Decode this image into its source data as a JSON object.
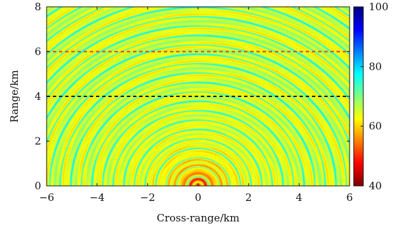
{
  "chart_data": {
    "type": "heatmap",
    "title": "",
    "xlabel": "Cross-range/km",
    "ylabel": "Range/km",
    "xlim": [
      -6,
      6
    ],
    "ylim": [
      0,
      8
    ],
    "x_ticks": [
      "−6",
      "−4",
      "−2",
      "0",
      "2",
      "4",
      "6"
    ],
    "y_ticks": [
      "0",
      "2",
      "4",
      "6",
      "8"
    ],
    "x_tick_values": [
      -6,
      -4,
      -2,
      0,
      2,
      4,
      6
    ],
    "y_tick_values": [
      0,
      2,
      4,
      6,
      8
    ],
    "colorbar": {
      "range": [
        40,
        100
      ],
      "ticks": [
        "40",
        "60",
        "80",
        "100"
      ],
      "tick_values": [
        40,
        60,
        80,
        100
      ],
      "colormap": "jet-reversed",
      "colormap_note": "low values dark red, high values dark blue"
    },
    "field": {
      "description": "transmission loss pattern radiating from a source at cross-range 0 km, range 0 km",
      "source": [
        0,
        0
      ],
      "background_level": 65
    },
    "reference_lines": [
      {
        "y": 6,
        "color": "#d6452a",
        "style": "dashed"
      },
      {
        "y": 4,
        "color": "#1a1a1a",
        "style": "dashed"
      }
    ],
    "colors": {
      "axis": "#111111",
      "red_dashed_line": "#d6452a",
      "black_dashed_line": "#1a1a1a"
    }
  }
}
